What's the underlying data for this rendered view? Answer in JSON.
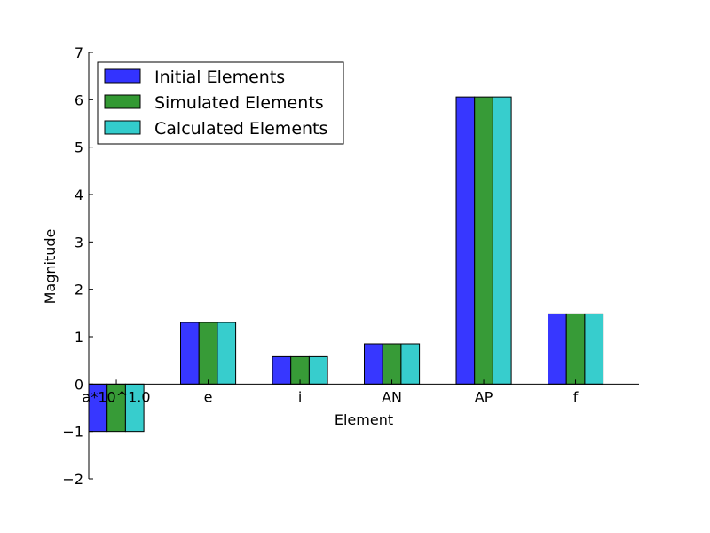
{
  "chart_data": {
    "type": "bar",
    "title": "",
    "xlabel": "Element",
    "ylabel": "Magnitude",
    "categories": [
      "a*10^1.0",
      "e",
      "i",
      "AN",
      "AP",
      "f"
    ],
    "series": [
      {
        "name": "Initial Elements",
        "color": "#3333ff",
        "values": [
          -1.0,
          1.3,
          0.58,
          0.85,
          6.06,
          1.48
        ]
      },
      {
        "name": "Simulated Elements",
        "color": "#339933",
        "values": [
          -1.0,
          1.3,
          0.58,
          0.85,
          6.06,
          1.48
        ]
      },
      {
        "name": "Calculated Elements",
        "color": "#33cccc",
        "values": [
          -1.0,
          1.3,
          0.58,
          0.85,
          6.06,
          1.48
        ]
      }
    ],
    "ylim": [
      -2,
      7
    ],
    "yticks": [
      "−2",
      "−1",
      "0",
      "1",
      "2",
      "3",
      "4",
      "5",
      "6",
      "7"
    ],
    "grid": false,
    "legend_position": "top-left"
  }
}
